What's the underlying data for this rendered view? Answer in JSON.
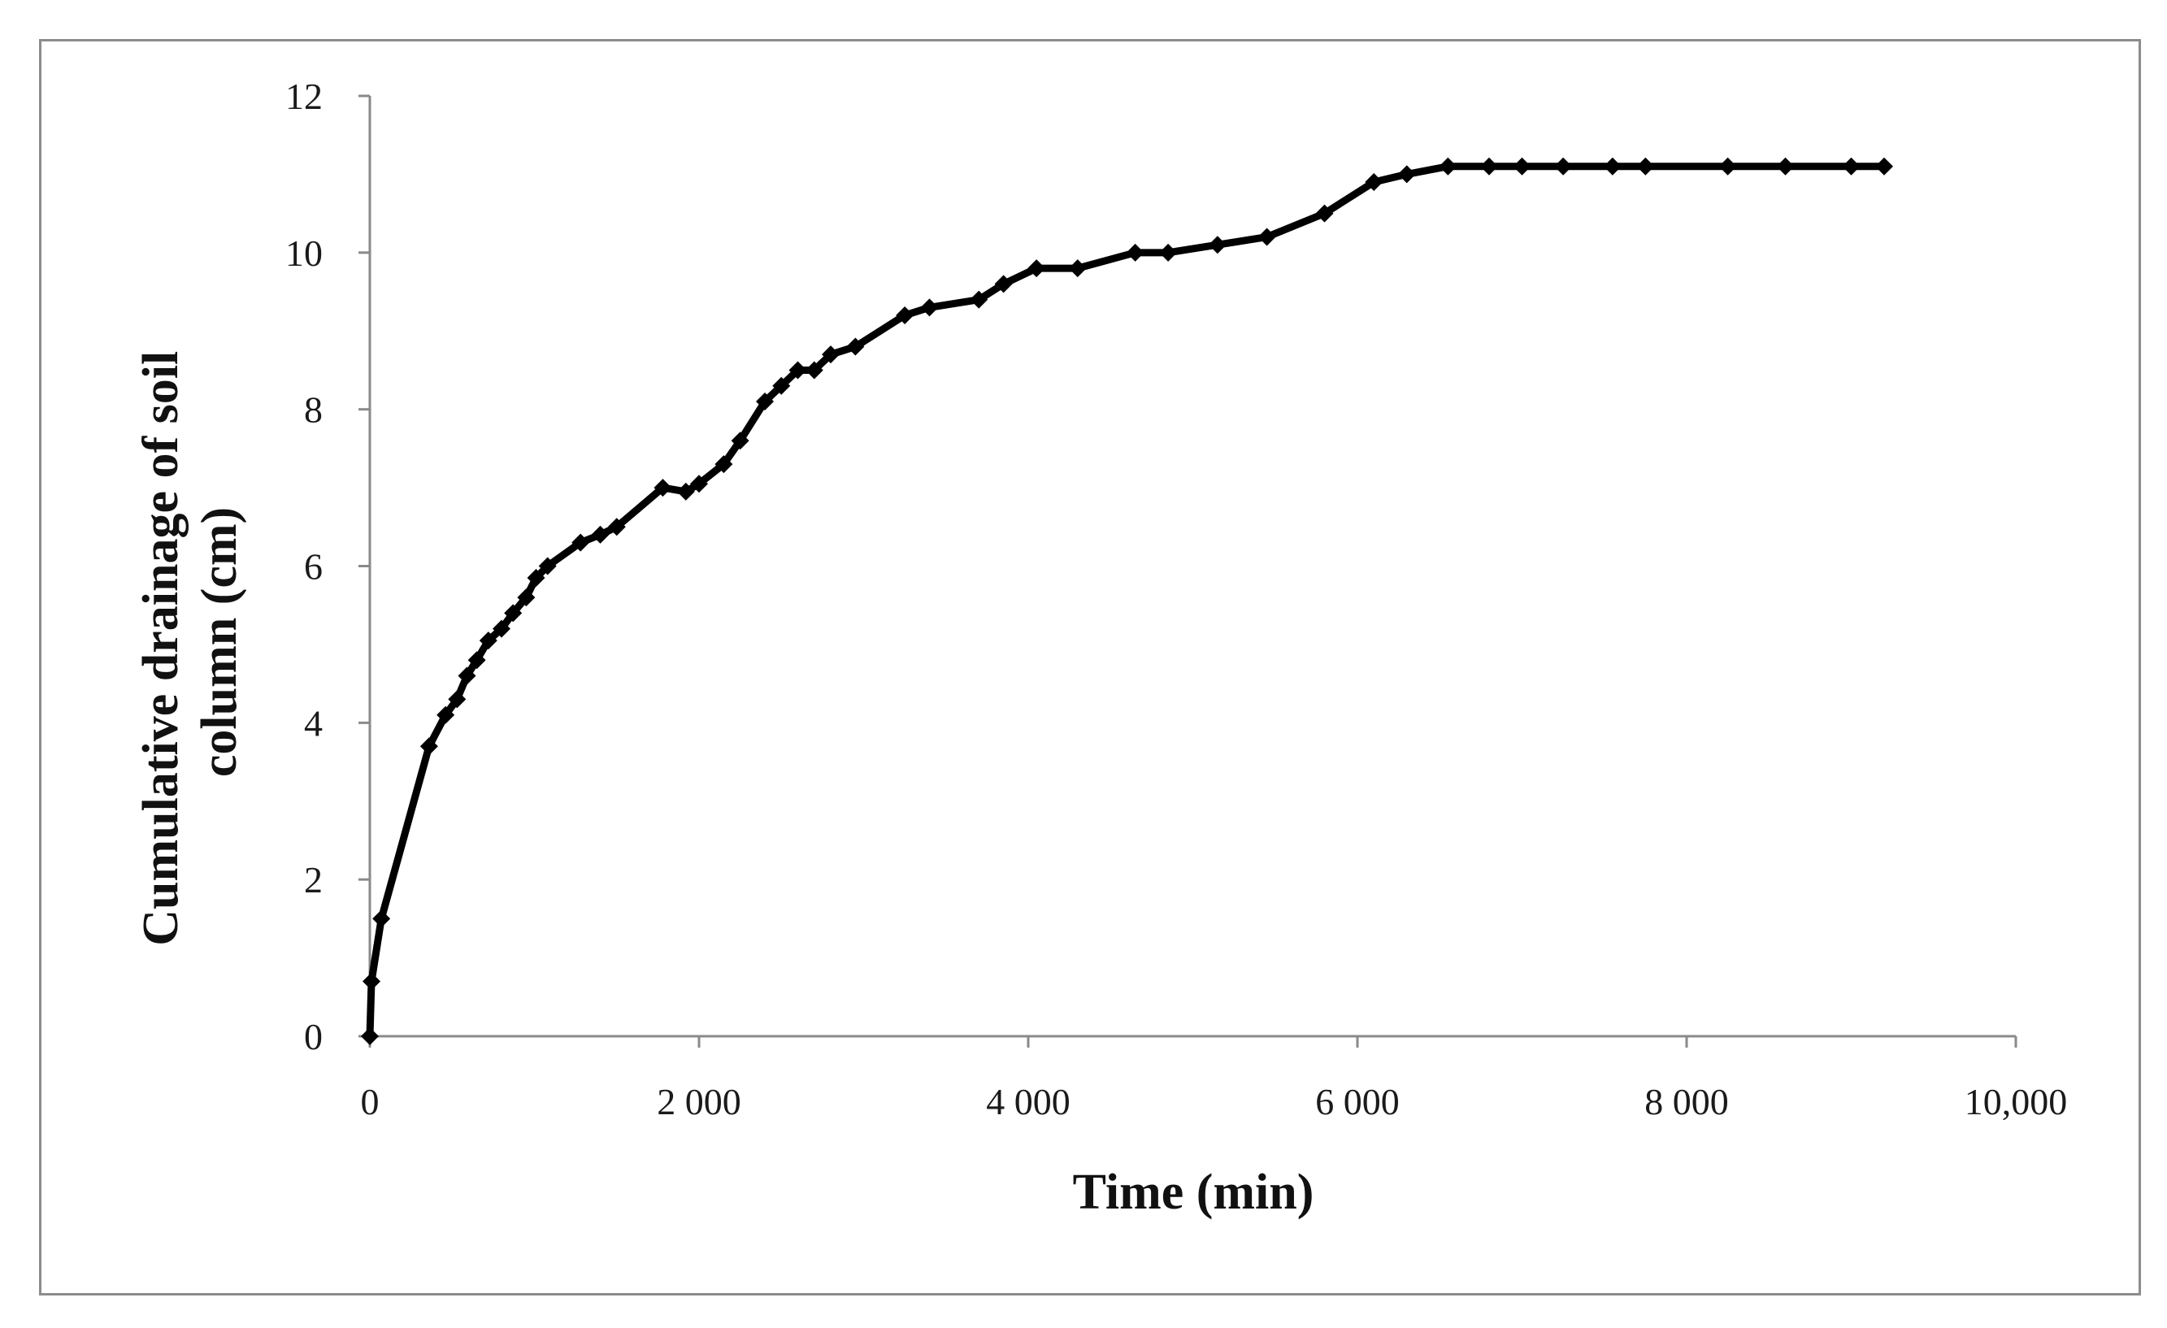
{
  "chart_data": {
    "type": "line",
    "title": "",
    "xlabel": "Time (min)",
    "ylabel_lines": [
      "Cumulative drainage of soil",
      "column (cm)"
    ],
    "xlim": [
      0,
      10000
    ],
    "ylim": [
      0,
      12
    ],
    "x_ticks": [
      0,
      2000,
      4000,
      6000,
      8000,
      10000
    ],
    "x_tick_labels": [
      "0",
      "2 000",
      "4 000",
      "6 000",
      "8 000",
      "10,000"
    ],
    "y_ticks": [
      0,
      2,
      4,
      6,
      8,
      10,
      12
    ],
    "y_tick_labels": [
      "0",
      "2",
      "4",
      "6",
      "8",
      "10",
      "12"
    ],
    "grid": false,
    "legend": "none",
    "marker": "diamond",
    "line_color": "#000000",
    "series": [
      {
        "x": [
          0,
          10,
          70,
          360,
          460,
          530,
          590,
          650,
          720,
          800,
          870,
          950,
          1010,
          1080,
          1280,
          1400,
          1500,
          1780,
          1920,
          2000,
          2150,
          2250,
          2400,
          2500,
          2600,
          2700,
          2800,
          2950,
          3250,
          3400,
          3700,
          3850,
          4050,
          4300,
          4650,
          4850,
          5150,
          5450,
          5800,
          6100,
          6300,
          6550,
          6800,
          7000,
          7250,
          7550,
          7750,
          8250,
          8600,
          9000,
          9200
        ],
        "y": [
          0,
          0.7,
          1.5,
          3.7,
          4.1,
          4.3,
          4.6,
          4.8,
          5.05,
          5.2,
          5.4,
          5.6,
          5.85,
          6.0,
          6.3,
          6.4,
          6.5,
          7.0,
          6.95,
          7.05,
          7.3,
          7.6,
          8.1,
          8.3,
          8.5,
          8.5,
          8.7,
          8.8,
          9.2,
          9.3,
          9.4,
          9.6,
          9.8,
          9.8,
          10.0,
          10.0,
          10.1,
          10.2,
          10.5,
          10.9,
          11.0,
          11.1,
          11.1,
          11.1,
          11.1,
          11.1,
          11.1,
          11.1,
          11.1,
          11.1,
          11.1
        ]
      }
    ]
  }
}
